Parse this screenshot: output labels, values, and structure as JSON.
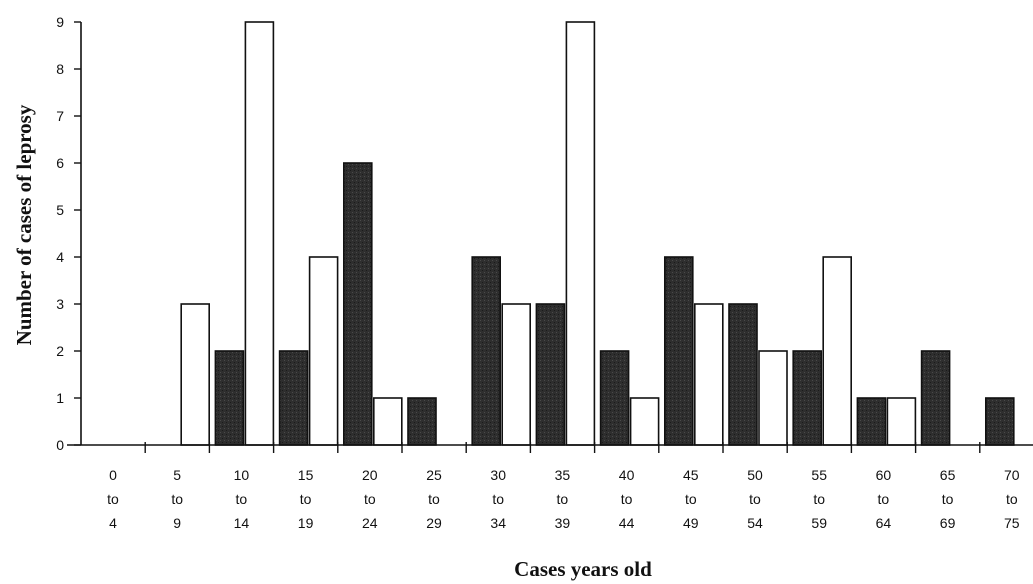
{
  "chart_data": {
    "type": "bar",
    "title": "",
    "xlabel": "Cases years old",
    "ylabel": "Number of cases of leprosy",
    "ylim": [
      0,
      9
    ],
    "yticks": [
      "0",
      "1",
      "2",
      "3",
      "4",
      "5",
      "6",
      "7",
      "8",
      "9"
    ],
    "grid": false,
    "legend": "none",
    "categories": [
      [
        "0",
        "to",
        "4"
      ],
      [
        "5",
        "to",
        "9"
      ],
      [
        "10",
        "to",
        "14"
      ],
      [
        "15",
        "to",
        "19"
      ],
      [
        "20",
        "to",
        "24"
      ],
      [
        "25",
        "to",
        "29"
      ],
      [
        "30",
        "to",
        "34"
      ],
      [
        "35",
        "to",
        "39"
      ],
      [
        "40",
        "to",
        "44"
      ],
      [
        "45",
        "to",
        "49"
      ],
      [
        "50",
        "to",
        "54"
      ],
      [
        "55",
        "to",
        "59"
      ],
      [
        "60",
        "to",
        "64"
      ],
      [
        "65",
        "to",
        "69"
      ],
      [
        "70",
        "to",
        "75"
      ]
    ],
    "series": [
      {
        "color": "#2a2a2a",
        "values": [
          0,
          0,
          2,
          2,
          6,
          1,
          4,
          3,
          2,
          4,
          3,
          2,
          1,
          2,
          1
        ]
      },
      {
        "color": "#ffffff",
        "values": [
          0,
          3,
          9,
          4,
          1,
          0,
          3,
          9,
          1,
          3,
          2,
          4,
          1,
          0,
          0
        ]
      }
    ]
  }
}
